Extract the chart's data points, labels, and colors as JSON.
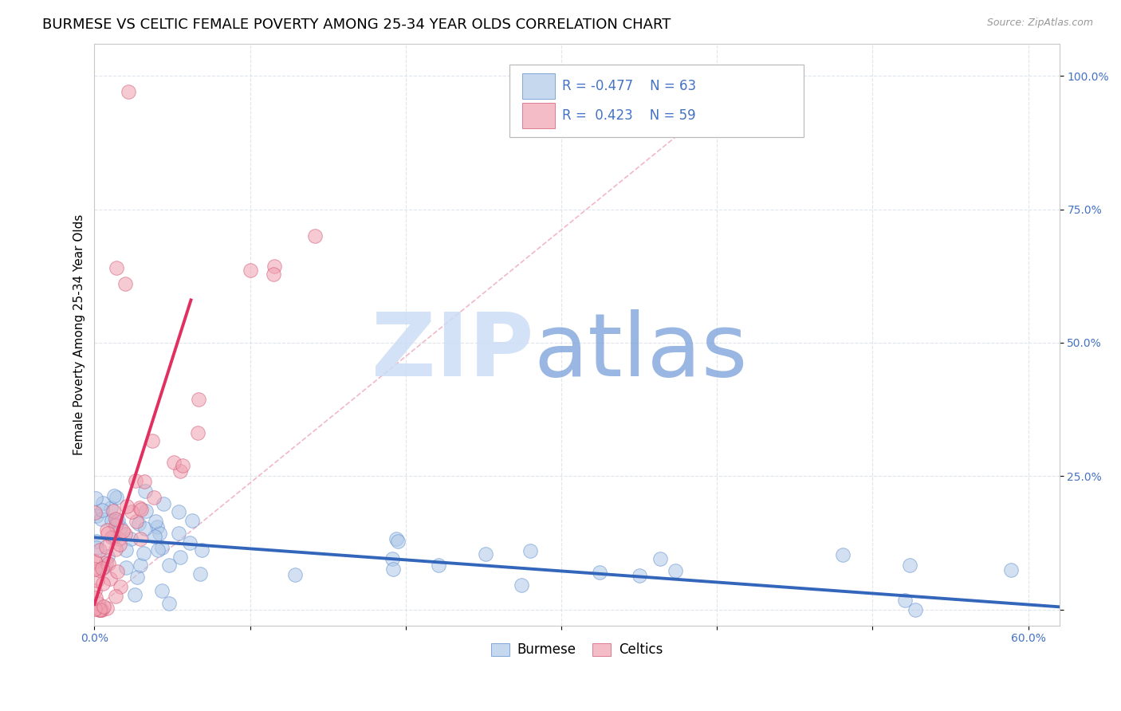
{
  "title": "BURMESE VS CELTIC FEMALE POVERTY AMONG 25-34 YEAR OLDS CORRELATION CHART",
  "source": "Source: ZipAtlas.com",
  "ylabel": "Female Poverty Among 25-34 Year Olds",
  "xlim": [
    0.0,
    0.62
  ],
  "ylim": [
    -0.03,
    1.06
  ],
  "burmese_color": "#aec8e8",
  "burmese_edge": "#5588cc",
  "celtics_color": "#f0a0b0",
  "celtics_edge": "#d05070",
  "burmese_trend_color": "#3366bb",
  "celtics_trend_color": "#e03060",
  "celtics_dash_color": "#f0b0c0",
  "title_fontsize": 13,
  "axis_label_fontsize": 11,
  "tick_fontsize": 10,
  "legend_fontsize": 12,
  "burmese_R": "-0.477",
  "burmese_N": "63",
  "celtics_R": "0.423",
  "celtics_N": "59",
  "legend_text_color": "#4472c4",
  "zip_color": "#ccddf5",
  "atlas_color": "#88aadd"
}
